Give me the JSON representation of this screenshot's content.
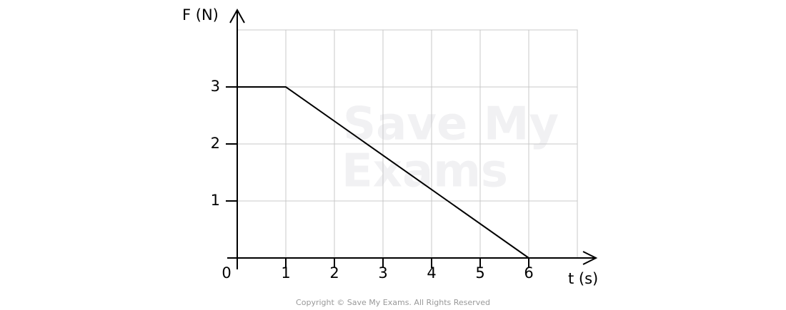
{
  "chart_data": {
    "type": "line",
    "x": [
      0,
      1,
      6
    ],
    "series": [
      {
        "name": "F",
        "color": "#000000",
        "values": [
          3,
          3,
          0
        ]
      }
    ],
    "xlabel": "t (s)",
    "ylabel": "F (N)",
    "xlim": [
      0,
      7
    ],
    "ylim": [
      0,
      4
    ],
    "xticks": [
      0,
      1,
      2,
      3,
      4,
      5,
      6
    ],
    "yticks": [
      1,
      2,
      3
    ],
    "grid": true,
    "watermark": [
      "Save My",
      "Exams"
    ],
    "footer": "Copyright © Save My Exams. All Rights Reserved"
  }
}
